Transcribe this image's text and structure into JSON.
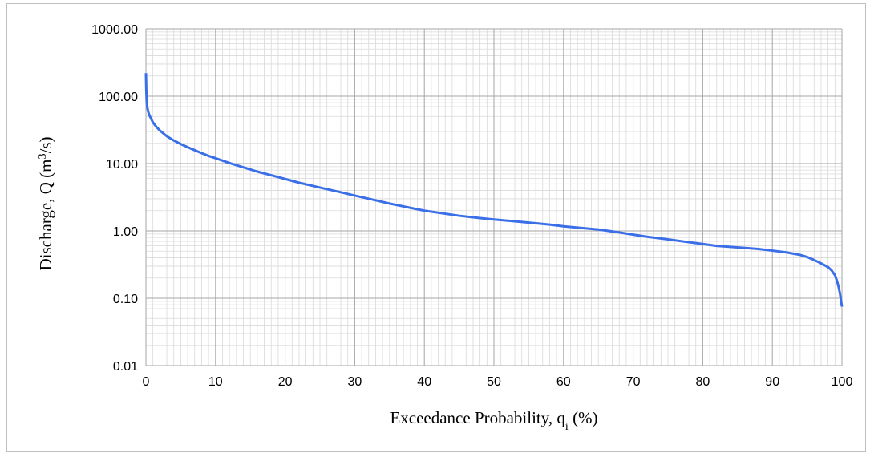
{
  "chart_data": {
    "type": "line",
    "title": "",
    "xlabel": {
      "prefix": "Exceedance Probability, q",
      "sub": "i",
      "suffix": " (%)"
    },
    "ylabel": {
      "prefix": "Discharge, Q (m",
      "sup": "3",
      "suffix": "/s)"
    },
    "x_ticks": [
      "0",
      "10",
      "20",
      "30",
      "40",
      "50",
      "60",
      "70",
      "80",
      "90",
      "100"
    ],
    "y_ticks": [
      "0.01",
      "0.10",
      "1.00",
      "10.00",
      "100.00",
      "1000.00"
    ],
    "xlim": [
      0,
      100
    ],
    "ylim": [
      0.01,
      1000
    ],
    "y_scale": "log",
    "grid": {
      "major": true,
      "minor": true
    },
    "line_color": "#3b6fe8",
    "series": [
      {
        "x": [
          0,
          0.05,
          0.1,
          0.2,
          0.3,
          0.5,
          0.8,
          1,
          1.5,
          2,
          3,
          4,
          5,
          6,
          7,
          8,
          9,
          10,
          12,
          14,
          16,
          18,
          20,
          22,
          25,
          28,
          30,
          33,
          35,
          38,
          40,
          43,
          45,
          48,
          50,
          52,
          55,
          58,
          60,
          62,
          65,
          68,
          70,
          72,
          75,
          78,
          80,
          82,
          85,
          88,
          90,
          92,
          94,
          95,
          96,
          97,
          98,
          98.5,
          99,
          99.3,
          99.5,
          99.7,
          99.85,
          100
        ],
        "y": [
          220,
          120,
          85,
          68,
          60,
          52,
          45,
          41,
          35,
          31,
          25.5,
          22,
          19.5,
          17.5,
          15.8,
          14.3,
          13,
          12,
          10.2,
          8.8,
          7.6,
          6.7,
          5.9,
          5.2,
          4.4,
          3.75,
          3.35,
          2.85,
          2.55,
          2.2,
          2.0,
          1.8,
          1.68,
          1.55,
          1.48,
          1.42,
          1.33,
          1.24,
          1.17,
          1.12,
          1.05,
          0.95,
          0.88,
          0.82,
          0.75,
          0.68,
          0.64,
          0.6,
          0.57,
          0.54,
          0.51,
          0.48,
          0.44,
          0.41,
          0.37,
          0.33,
          0.29,
          0.26,
          0.22,
          0.18,
          0.15,
          0.12,
          0.095,
          0.075
        ]
      }
    ]
  }
}
